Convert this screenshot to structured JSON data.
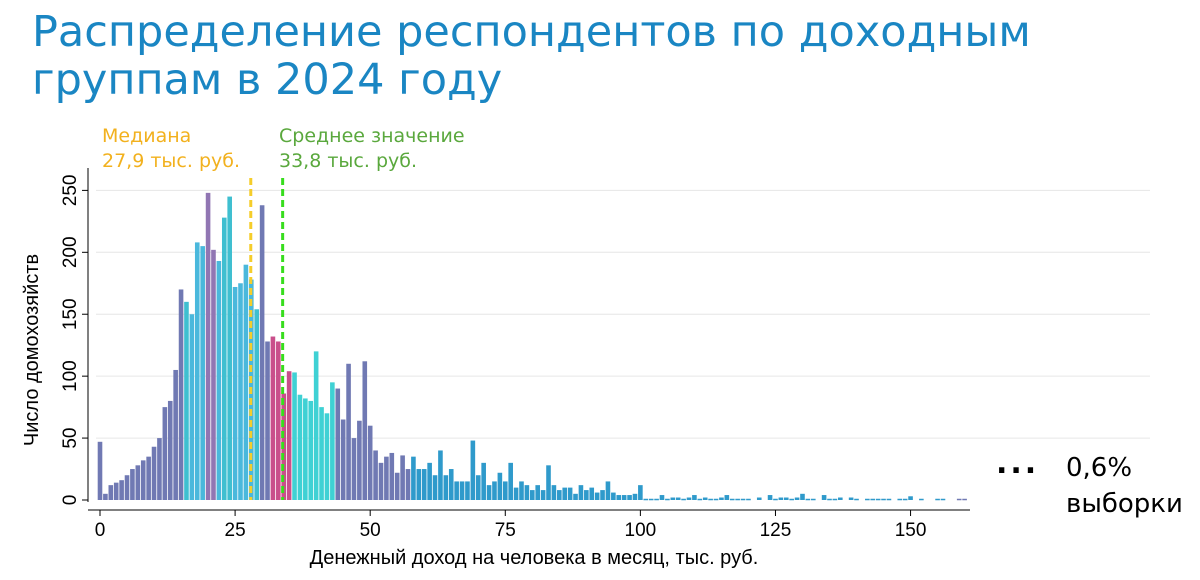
{
  "title": "Распределение респондентов по доходным группам в 2024 году",
  "annotations": {
    "median_label": "Медиана",
    "median_value": "27,9 тыс. руб.",
    "mean_label": "Среднее значение",
    "mean_value": "33,8 тыс. руб.",
    "sample_dots": "...",
    "sample_pct": "0,6%",
    "sample_word": "выборки"
  },
  "chart_data": {
    "type": "bar",
    "xlabel": "Денежный доход на человека в месяц, тыс. руб.",
    "ylabel": "Число домохозяйств",
    "xlim": [
      0,
      161
    ],
    "ylim": [
      0,
      260
    ],
    "x_ticks": [
      0,
      25,
      50,
      75,
      100,
      125,
      150
    ],
    "y_ticks": [
      0,
      50,
      100,
      150,
      200,
      250
    ],
    "grid": true,
    "bin_width": 1,
    "median": 27.9,
    "mean": 33.8,
    "colors": {
      "median_line": "#f5cd2b",
      "mean_line": "#37dd1d",
      "bar_default": "#7079b3",
      "bar_teal": "#3fbfd0",
      "bar_cyan": "#4ab8dc",
      "bar_purple": "#9176b3",
      "bar_magenta": "#c94f8b",
      "bar_turquoise": "#3fd1d4",
      "bar_blue": "#2f9acb"
    },
    "x": [
      0,
      1,
      2,
      3,
      4,
      5,
      6,
      7,
      8,
      9,
      10,
      11,
      12,
      13,
      14,
      15,
      16,
      17,
      18,
      19,
      20,
      21,
      22,
      23,
      24,
      25,
      26,
      27,
      28,
      29,
      30,
      31,
      32,
      33,
      34,
      35,
      36,
      37,
      38,
      39,
      40,
      41,
      42,
      43,
      44,
      45,
      46,
      47,
      48,
      49,
      50,
      51,
      52,
      53,
      54,
      55,
      56,
      57,
      58,
      59,
      60,
      61,
      62,
      63,
      64,
      65,
      66,
      67,
      68,
      69,
      70,
      71,
      72,
      73,
      74,
      75,
      76,
      77,
      78,
      79,
      80,
      81,
      82,
      83,
      84,
      85,
      86,
      87,
      88,
      89,
      90,
      91,
      92,
      93,
      94,
      95,
      96,
      97,
      98,
      99,
      100,
      101,
      102,
      103,
      104,
      105,
      106,
      107,
      108,
      109,
      110,
      111,
      112,
      113,
      114,
      115,
      116,
      117,
      118,
      119,
      120,
      121,
      122,
      123,
      124,
      125,
      126,
      127,
      128,
      129,
      130,
      131,
      132,
      133,
      134,
      135,
      136,
      137,
      138,
      139,
      140,
      141,
      142,
      143,
      144,
      145,
      146,
      147,
      148,
      149,
      150,
      151,
      152,
      153,
      154,
      155,
      156,
      157,
      158,
      159,
      160
    ],
    "values": [
      47,
      5,
      12,
      14,
      16,
      20,
      25,
      28,
      32,
      35,
      43,
      50,
      75,
      80,
      105,
      170,
      160,
      150,
      208,
      205,
      248,
      202,
      193,
      228,
      245,
      172,
      175,
      190,
      178,
      154,
      238,
      128,
      132,
      128,
      86,
      104,
      103,
      85,
      82,
      80,
      120,
      75,
      70,
      95,
      90,
      65,
      110,
      50,
      64,
      112,
      60,
      40,
      30,
      35,
      38,
      22,
      36,
      25,
      35,
      25,
      25,
      30,
      20,
      40,
      20,
      25,
      15,
      15,
      15,
      48,
      20,
      30,
      12,
      15,
      22,
      15,
      30,
      10,
      15,
      12,
      8,
      12,
      8,
      28,
      12,
      8,
      10,
      10,
      5,
      12,
      8,
      10,
      6,
      8,
      15,
      6,
      4,
      4,
      4,
      5,
      12,
      1,
      1,
      1,
      4,
      1,
      2,
      2,
      1,
      2,
      4,
      1,
      2,
      1,
      1,
      2,
      4,
      1,
      1,
      1,
      1,
      0,
      2,
      0,
      4,
      1,
      2,
      2,
      1,
      2,
      5,
      1,
      1,
      0,
      4,
      1,
      1,
      2,
      0,
      2,
      1,
      0,
      1,
      1,
      1,
      1,
      1,
      0,
      1,
      1,
      3,
      0,
      1,
      0,
      0,
      1,
      1,
      0,
      0,
      1,
      1
    ],
    "bar_colors": [
      "bar_default",
      "bar_default",
      "bar_default",
      "bar_default",
      "bar_default",
      "bar_default",
      "bar_default",
      "bar_default",
      "bar_default",
      "bar_default",
      "bar_default",
      "bar_default",
      "bar_default",
      "bar_default",
      "bar_default",
      "bar_default",
      "bar_teal",
      "bar_cyan",
      "bar_cyan",
      "bar_cyan",
      "bar_purple",
      "bar_purple",
      "bar_cyan",
      "bar_teal",
      "bar_teal",
      "bar_cyan",
      "bar_cyan",
      "bar_cyan",
      "bar_cyan",
      "bar_teal",
      "bar_default",
      "bar_default",
      "bar_magenta",
      "bar_magenta",
      "bar_magenta",
      "bar_magenta",
      "bar_turquoise",
      "bar_turquoise",
      "bar_turquoise",
      "bar_turquoise",
      "bar_turquoise",
      "bar_turquoise",
      "bar_turquoise",
      "bar_turquoise",
      "bar_default",
      "bar_default",
      "bar_default",
      "bar_default",
      "bar_default",
      "bar_default",
      "bar_default",
      "bar_default",
      "bar_default",
      "bar_default",
      "bar_default",
      "bar_default",
      "bar_default",
      "bar_default",
      "bar_blue",
      "bar_blue",
      "bar_blue",
      "bar_blue",
      "bar_blue",
      "bar_blue",
      "bar_blue",
      "bar_blue",
      "bar_blue",
      "bar_blue",
      "bar_blue",
      "bar_blue",
      "bar_blue",
      "bar_blue",
      "bar_blue",
      "bar_blue",
      "bar_blue",
      "bar_blue",
      "bar_blue",
      "bar_blue",
      "bar_blue",
      "bar_blue",
      "bar_blue",
      "bar_blue",
      "bar_blue",
      "bar_blue",
      "bar_blue",
      "bar_blue",
      "bar_blue",
      "bar_blue",
      "bar_blue",
      "bar_blue",
      "bar_blue",
      "bar_blue",
      "bar_blue",
      "bar_blue",
      "bar_blue",
      "bar_blue",
      "bar_blue",
      "bar_blue",
      "bar_blue",
      "bar_blue",
      "bar_blue",
      "bar_blue",
      "bar_blue",
      "bar_blue",
      "bar_blue",
      "bar_blue",
      "bar_blue",
      "bar_blue",
      "bar_blue",
      "bar_blue",
      "bar_blue",
      "bar_blue",
      "bar_blue",
      "bar_blue",
      "bar_blue",
      "bar_blue",
      "bar_blue",
      "bar_blue",
      "bar_blue",
      "bar_blue",
      "bar_blue",
      "bar_blue",
      "bar_blue",
      "bar_blue",
      "bar_blue",
      "bar_blue",
      "bar_blue",
      "bar_blue",
      "bar_blue",
      "bar_blue",
      "bar_blue",
      "bar_blue",
      "bar_blue",
      "bar_blue",
      "bar_blue",
      "bar_blue",
      "bar_blue",
      "bar_blue",
      "bar_blue",
      "bar_blue",
      "bar_blue",
      "bar_blue",
      "bar_blue",
      "bar_blue",
      "bar_blue",
      "bar_blue",
      "bar_blue",
      "bar_blue",
      "bar_blue",
      "bar_blue",
      "bar_blue",
      "bar_blue",
      "bar_blue",
      "bar_blue",
      "bar_blue",
      "bar_blue",
      "bar_blue",
      "bar_blue",
      "bar_blue"
    ]
  }
}
